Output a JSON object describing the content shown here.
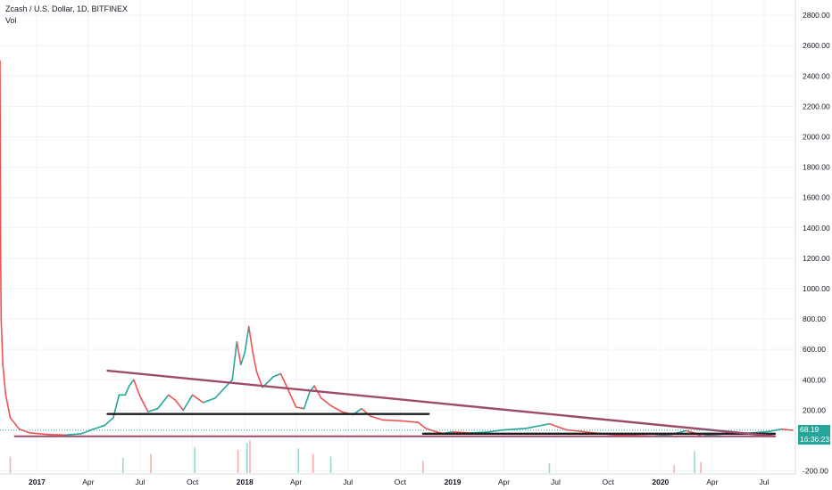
{
  "header": {
    "title": "Zcash / U.S. Dollar, 1D, BITFINEX",
    "volume_label": "Vol"
  },
  "chart_data": {
    "type": "candlestick",
    "ylim": [
      -220,
      2900
    ],
    "y_ticks": [
      {
        "value": 2800,
        "label": "2800.00"
      },
      {
        "value": 2600,
        "label": "2600.00"
      },
      {
        "value": 2400,
        "label": "2400.00"
      },
      {
        "value": 2200,
        "label": "2200.00"
      },
      {
        "value": 2000,
        "label": "2000.00"
      },
      {
        "value": 1800,
        "label": "1800.00"
      },
      {
        "value": 1600,
        "label": "1600.00"
      },
      {
        "value": 1400,
        "label": "1400.00"
      },
      {
        "value": 1200,
        "label": "1200.00"
      },
      {
        "value": 1000,
        "label": "1000.00"
      },
      {
        "value": 800,
        "label": "800.00"
      },
      {
        "value": 600,
        "label": "600.00"
      },
      {
        "value": 400,
        "label": "400.00"
      },
      {
        "value": 200,
        "label": "200.00"
      },
      {
        "value": -200,
        "label": "-200.00"
      }
    ],
    "x_range": [
      "2016-10-28",
      "2020-08-25"
    ],
    "x_ticks": [
      {
        "date": "2017-01-01",
        "label": "2017",
        "bold": true
      },
      {
        "date": "2017-04-01",
        "label": "Apr",
        "bold": false
      },
      {
        "date": "2017-07-01",
        "label": "Jul",
        "bold": false
      },
      {
        "date": "2017-10-01",
        "label": "Oct",
        "bold": false
      },
      {
        "date": "2018-01-01",
        "label": "2018",
        "bold": true
      },
      {
        "date": "2018-04-01",
        "label": "Apr",
        "bold": false
      },
      {
        "date": "2018-07-01",
        "label": "Jul",
        "bold": false
      },
      {
        "date": "2018-10-01",
        "label": "Oct",
        "bold": false
      },
      {
        "date": "2019-01-01",
        "label": "2019",
        "bold": true
      },
      {
        "date": "2019-04-01",
        "label": "Apr",
        "bold": false
      },
      {
        "date": "2019-07-01",
        "label": "Jul",
        "bold": false
      },
      {
        "date": "2019-10-01",
        "label": "Oct",
        "bold": false
      },
      {
        "date": "2020-01-01",
        "label": "2020",
        "bold": true
      },
      {
        "date": "2020-04-01",
        "label": "Apr",
        "bold": false
      },
      {
        "date": "2020-07-01",
        "label": "Jul",
        "bold": false
      }
    ],
    "price_path": [
      [
        "2016-10-28",
        2500
      ],
      [
        "2016-10-29",
        1300
      ],
      [
        "2016-10-30",
        800
      ],
      [
        "2016-11-02",
        500
      ],
      [
        "2016-11-07",
        300
      ],
      [
        "2016-11-15",
        150
      ],
      [
        "2016-12-01",
        75
      ],
      [
        "2016-12-20",
        50
      ],
      [
        "2017-01-20",
        40
      ],
      [
        "2017-02-20",
        36
      ],
      [
        "2017-03-20",
        45
      ],
      [
        "2017-04-10",
        75
      ],
      [
        "2017-04-30",
        100
      ],
      [
        "2017-05-15",
        150
      ],
      [
        "2017-05-25",
        300
      ],
      [
        "2017-06-05",
        300
      ],
      [
        "2017-06-12",
        360
      ],
      [
        "2017-06-20",
        400
      ],
      [
        "2017-07-01",
        290
      ],
      [
        "2017-07-15",
        190
      ],
      [
        "2017-08-01",
        210
      ],
      [
        "2017-08-20",
        300
      ],
      [
        "2017-09-01",
        265
      ],
      [
        "2017-09-15",
        200
      ],
      [
        "2017-10-01",
        300
      ],
      [
        "2017-10-20",
        250
      ],
      [
        "2017-11-10",
        280
      ],
      [
        "2017-11-25",
        340
      ],
      [
        "2017-12-10",
        400
      ],
      [
        "2017-12-18",
        650
      ],
      [
        "2017-12-25",
        500
      ],
      [
        "2018-01-01",
        580
      ],
      [
        "2018-01-08",
        750
      ],
      [
        "2018-01-15",
        580
      ],
      [
        "2018-01-22",
        450
      ],
      [
        "2018-02-01",
        350
      ],
      [
        "2018-02-20",
        420
      ],
      [
        "2018-03-05",
        440
      ],
      [
        "2018-03-15",
        360
      ],
      [
        "2018-04-01",
        220
      ],
      [
        "2018-04-15",
        210
      ],
      [
        "2018-04-25",
        320
      ],
      [
        "2018-05-03",
        360
      ],
      [
        "2018-05-15",
        280
      ],
      [
        "2018-06-01",
        230
      ],
      [
        "2018-06-20",
        190
      ],
      [
        "2018-07-10",
        170
      ],
      [
        "2018-07-25",
        210
      ],
      [
        "2018-08-10",
        160
      ],
      [
        "2018-09-01",
        135
      ],
      [
        "2018-10-01",
        130
      ],
      [
        "2018-11-01",
        120
      ],
      [
        "2018-11-15",
        80
      ],
      [
        "2018-12-01",
        60
      ],
      [
        "2018-12-15",
        47
      ],
      [
        "2019-01-01",
        57
      ],
      [
        "2019-02-01",
        50
      ],
      [
        "2019-03-01",
        55
      ],
      [
        "2019-04-01",
        70
      ],
      [
        "2019-05-10",
        80
      ],
      [
        "2019-06-20",
        110
      ],
      [
        "2019-07-05",
        90
      ],
      [
        "2019-07-20",
        70
      ],
      [
        "2019-08-15",
        60
      ],
      [
        "2019-09-20",
        45
      ],
      [
        "2019-10-20",
        35
      ],
      [
        "2019-11-15",
        33
      ],
      [
        "2019-12-20",
        30
      ],
      [
        "2020-01-20",
        40
      ],
      [
        "2020-02-15",
        65
      ],
      [
        "2020-03-01",
        50
      ],
      [
        "2020-03-13",
        30
      ],
      [
        "2020-04-10",
        40
      ],
      [
        "2020-05-10",
        48
      ],
      [
        "2020-06-10",
        50
      ],
      [
        "2020-07-10",
        60
      ],
      [
        "2020-08-01",
        75
      ],
      [
        "2020-08-20",
        68
      ]
    ],
    "volume_bars": [
      [
        "2016-11-15",
        60
      ],
      [
        "2017-06-01",
        55
      ],
      [
        "2017-07-20",
        70
      ],
      [
        "2017-10-05",
        95
      ],
      [
        "2017-12-20",
        85
      ],
      [
        "2018-01-05",
        110
      ],
      [
        "2018-01-10",
        120
      ],
      [
        "2018-04-05",
        90
      ],
      [
        "2018-05-01",
        70
      ],
      [
        "2018-06-01",
        60
      ],
      [
        "2018-11-10",
        45
      ],
      [
        "2019-06-20",
        35
      ],
      [
        "2020-01-25",
        30
      ],
      [
        "2020-03-01",
        80
      ],
      [
        "2020-03-12",
        40
      ]
    ],
    "volume_max": 130,
    "annotations": {
      "trendline": {
        "start": [
          "2017-05-05",
          460
        ],
        "end": [
          "2020-07-20",
          28
        ],
        "color": "#9e4a6c"
      },
      "support_2017_2018": {
        "start": [
          "2017-05-05",
          175
        ],
        "end": [
          "2018-11-20",
          175
        ],
        "color": "#1e1e1e"
      },
      "support_2019_2020": {
        "start": [
          "2018-11-10",
          45
        ],
        "end": [
          "2020-07-20",
          45
        ],
        "color": "#1e1e1e"
      },
      "base_line": {
        "start": [
          "2016-11-23",
          28
        ],
        "end": [
          "2020-07-20",
          28
        ],
        "color": "#9e4a6c"
      }
    },
    "last_price": {
      "value": 68.19,
      "label": "68.19",
      "color": "#26a69a"
    },
    "countdown": {
      "label": "16:36:23",
      "color": "#26a69a"
    },
    "grid": true
  }
}
